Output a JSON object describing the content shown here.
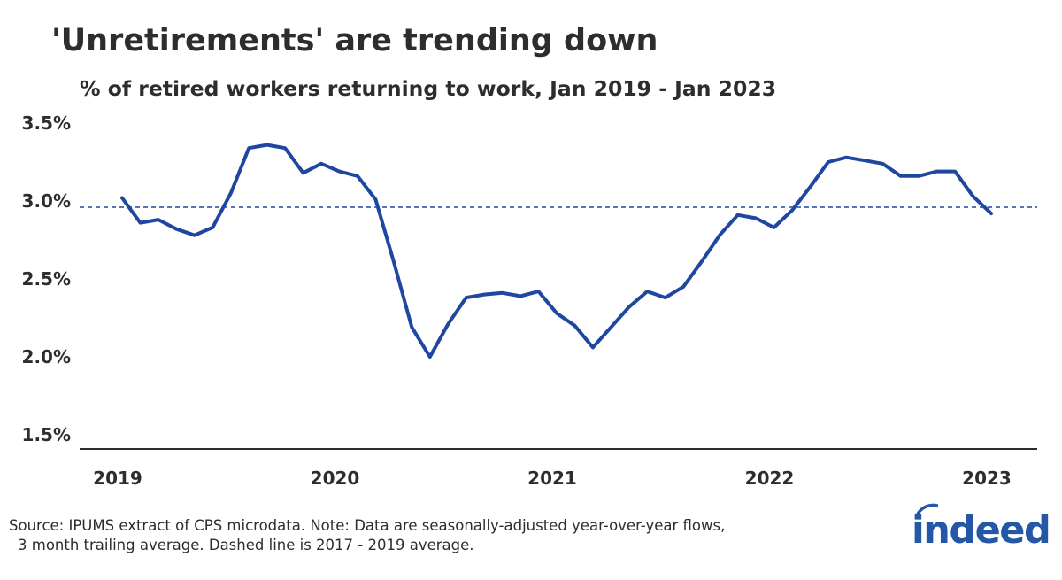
{
  "title": "'Unretirements' are trending down",
  "subtitle": "% of retired workers returning to work, Jan 2019 - Jan 2023",
  "footnote": {
    "line1": "Source: IPUMS extract of CPS microdata. Note: Data are seasonally-adjusted year-over-year flows,",
    "line2": "3 month trailing average. Dashed line is 2017 - 2019 average."
  },
  "logo": {
    "text": "indeed",
    "color": "#2557a7"
  },
  "colors": {
    "line": "#1f46a0",
    "reference": "#1f46a0",
    "axis": "#2d2d2d",
    "text": "#2d2d2d"
  },
  "chart_data": {
    "type": "line",
    "title": "'Unretirements' are trending down",
    "subtitle": "% of retired workers returning to work, Jan 2019 - Jan 2023",
    "xlabel": "",
    "ylabel": "",
    "x_start": "2019-01",
    "x_end": "2023-01",
    "ylim": [
      1.5,
      3.5
    ],
    "yticks": [
      1.5,
      2.0,
      2.5,
      3.0,
      3.5
    ],
    "ytick_labels": [
      "1.5%",
      "2.0%",
      "2.5%",
      "3.0%",
      "3.5%"
    ],
    "xtick_labels": [
      "2019",
      "2020",
      "2021",
      "2022",
      "2023"
    ],
    "grid": false,
    "reference_line": {
      "value": 2.96,
      "style": "dashed"
    },
    "series": [
      {
        "x": [
          "2019-01",
          "2019-02",
          "2019-03",
          "2019-04",
          "2019-05",
          "2019-06",
          "2019-07",
          "2019-08",
          "2019-09",
          "2019-10",
          "2019-11",
          "2019-12",
          "2020-01",
          "2020-02",
          "2020-03",
          "2020-04",
          "2020-05",
          "2020-06",
          "2020-07",
          "2020-08",
          "2020-09",
          "2020-10",
          "2020-11",
          "2020-12",
          "2021-01",
          "2021-02",
          "2021-03",
          "2021-04",
          "2021-05",
          "2021-06",
          "2021-07",
          "2021-08",
          "2021-09",
          "2021-10",
          "2021-11",
          "2021-12",
          "2022-01",
          "2022-02",
          "2022-03",
          "2022-04",
          "2022-05",
          "2022-06",
          "2022-07",
          "2022-08",
          "2022-09",
          "2022-10",
          "2022-11",
          "2022-12",
          "2023-01"
        ],
        "values": [
          3.02,
          2.86,
          2.88,
          2.82,
          2.78,
          2.83,
          3.05,
          3.34,
          3.36,
          3.34,
          3.18,
          3.24,
          3.19,
          3.16,
          3.01,
          2.61,
          2.19,
          2.0,
          2.21,
          2.38,
          2.4,
          2.41,
          2.39,
          2.42,
          2.28,
          2.2,
          2.06,
          2.19,
          2.32,
          2.42,
          2.38,
          2.45,
          2.61,
          2.78,
          2.91,
          2.89,
          2.83,
          2.94,
          3.09,
          3.25,
          3.28,
          3.26,
          3.24,
          3.16,
          3.16,
          3.19,
          3.19,
          3.03,
          2.92
        ]
      }
    ]
  }
}
